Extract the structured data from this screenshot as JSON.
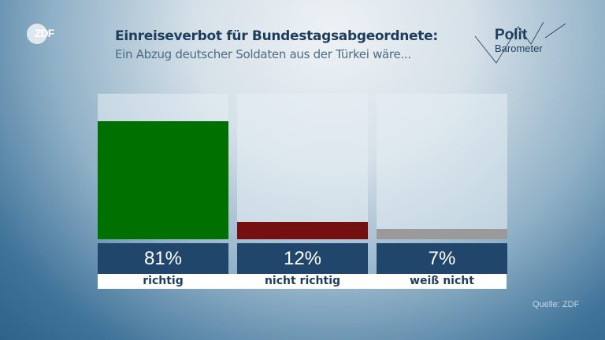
{
  "logo": "ZDF",
  "header": {
    "title": "Einreiseverbot für Bundestagsabgeordnete:",
    "subtitle": "Ein Abzug deutscher Soldaten aus der Türkei wäre..."
  },
  "brand": {
    "line1": "Polit",
    "line2": "Barometer"
  },
  "chart_data": {
    "type": "bar",
    "categories": [
      "richtig",
      "nicht richtig",
      "weiß nicht"
    ],
    "values": [
      81,
      12,
      7
    ],
    "value_labels": [
      "81%",
      "12%",
      "7%"
    ],
    "colors": [
      "#007000",
      "#741010",
      "#9a9a9a"
    ],
    "ylim": [
      0,
      100
    ]
  },
  "source": "Quelle: ZDF"
}
